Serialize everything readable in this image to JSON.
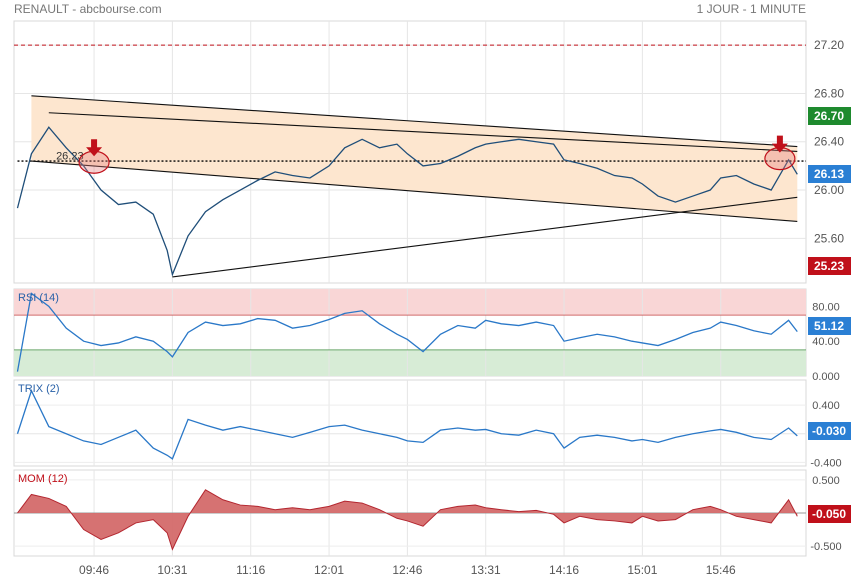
{
  "header": {
    "title": "RENAULT - abcbourse.com",
    "period": "1 JOUR - 1 MINUTE"
  },
  "colors": {
    "price_line": "#1f4e79",
    "channel_fill": "#fde6cf",
    "tag_blue": "#2a7fd4",
    "tag_green": "#1e8a2e",
    "tag_red": "#c0101a",
    "rsi_line": "#2a78c8",
    "rsi_over": "#f9d6d6",
    "rsi_under": "#d7ecd6",
    "mom_fill": "#d46a6a",
    "mom_line": "#b3262f",
    "arrow": "#c0101a"
  },
  "icons": {
    "signal": "down-arrow-icon"
  },
  "chart_data": [
    {
      "panel": "price",
      "type": "line",
      "ylim": [
        25.23,
        27.4
      ],
      "yticks": [
        "27.20",
        "26.80",
        "26.40",
        "26.00",
        "25.60"
      ],
      "value_tags": {
        "high": "26.70",
        "last": "26.13",
        "low": "25.23"
      },
      "ref_line": 27.2,
      "pivot_line": 26.24,
      "annotation": "26.23",
      "x_labels": [
        "09:46",
        "10:31",
        "11:16",
        "12:01",
        "12:46",
        "13:31",
        "14:16",
        "15:01",
        "15:46"
      ],
      "x": [
        "09:02",
        "09:10",
        "09:20",
        "09:30",
        "09:40",
        "09:50",
        "10:00",
        "10:10",
        "10:20",
        "10:28",
        "10:31",
        "10:40",
        "10:50",
        "11:00",
        "11:10",
        "11:20",
        "11:30",
        "11:40",
        "11:50",
        "12:01",
        "12:10",
        "12:20",
        "12:30",
        "12:40",
        "12:46",
        "12:55",
        "13:05",
        "13:15",
        "13:25",
        "13:31",
        "13:40",
        "13:50",
        "14:00",
        "14:10",
        "14:16",
        "14:25",
        "14:35",
        "14:45",
        "14:55",
        "15:01",
        "15:10",
        "15:20",
        "15:30",
        "15:40",
        "15:46",
        "15:55",
        "16:05",
        "16:15",
        "16:25",
        "16:30"
      ],
      "values": [
        25.85,
        26.3,
        26.52,
        26.35,
        26.2,
        26.0,
        25.88,
        25.9,
        25.8,
        25.5,
        25.3,
        25.62,
        25.82,
        25.92,
        26.0,
        26.08,
        26.15,
        26.12,
        26.1,
        26.2,
        26.35,
        26.42,
        26.35,
        26.38,
        26.3,
        26.2,
        26.22,
        26.28,
        26.35,
        26.38,
        26.4,
        26.42,
        26.4,
        26.38,
        26.25,
        26.22,
        26.18,
        26.12,
        26.1,
        26.05,
        25.95,
        25.9,
        25.95,
        26.0,
        26.1,
        26.12,
        26.05,
        26.0,
        26.25,
        26.13
      ],
      "trendlines": [
        {
          "from": [
            "09:10",
            26.78
          ],
          "to": [
            "16:30",
            26.36
          ]
        },
        {
          "from": [
            "09:10",
            26.24
          ],
          "to": [
            "16:30",
            25.74
          ]
        },
        {
          "from": [
            "09:20",
            26.64
          ],
          "to": [
            "16:30",
            26.32
          ]
        },
        {
          "from": [
            "10:31",
            25.28
          ],
          "to": [
            "16:30",
            25.94
          ]
        }
      ],
      "signals": [
        {
          "x": "09:46",
          "y": 26.23
        },
        {
          "x": "16:20",
          "y": 26.26
        }
      ]
    },
    {
      "panel": "rsi",
      "type": "line",
      "title": "RSI (14)",
      "ylim": [
        0,
        100
      ],
      "yticks": [
        "80.00",
        "40.00",
        "0.000"
      ],
      "overbought": 70,
      "oversold": 30,
      "value_tag": "51.12",
      "x": [
        "09:02",
        "09:10",
        "09:20",
        "09:30",
        "09:40",
        "09:50",
        "10:00",
        "10:10",
        "10:20",
        "10:28",
        "10:31",
        "10:40",
        "10:50",
        "11:00",
        "11:10",
        "11:20",
        "11:30",
        "11:40",
        "11:50",
        "12:01",
        "12:10",
        "12:20",
        "12:30",
        "12:40",
        "12:46",
        "12:55",
        "13:05",
        "13:15",
        "13:25",
        "13:31",
        "13:40",
        "13:50",
        "14:00",
        "14:10",
        "14:16",
        "14:25",
        "14:35",
        "14:45",
        "14:55",
        "15:01",
        "15:10",
        "15:20",
        "15:30",
        "15:40",
        "15:46",
        "15:55",
        "16:05",
        "16:15",
        "16:25",
        "16:30"
      ],
      "values": [
        5,
        95,
        80,
        55,
        40,
        35,
        38,
        45,
        40,
        28,
        22,
        50,
        62,
        58,
        60,
        66,
        64,
        55,
        58,
        65,
        72,
        75,
        60,
        48,
        42,
        28,
        48,
        58,
        55,
        64,
        60,
        58,
        62,
        58,
        40,
        44,
        48,
        45,
        40,
        38,
        35,
        42,
        50,
        55,
        62,
        58,
        52,
        48,
        64,
        51
      ]
    },
    {
      "panel": "trix",
      "type": "line",
      "title": "TRIX (2)",
      "ylim": [
        -0.45,
        0.75
      ],
      "yticks": [
        "0.400",
        "-0.400"
      ],
      "value_tag": "-0.030",
      "x": [
        "09:02",
        "09:10",
        "09:20",
        "09:30",
        "09:40",
        "09:50",
        "10:00",
        "10:10",
        "10:20",
        "10:28",
        "10:31",
        "10:40",
        "10:50",
        "11:00",
        "11:10",
        "11:20",
        "11:30",
        "11:40",
        "11:50",
        "12:01",
        "12:10",
        "12:20",
        "12:30",
        "12:40",
        "12:46",
        "12:55",
        "13:05",
        "13:15",
        "13:25",
        "13:31",
        "13:40",
        "13:50",
        "14:00",
        "14:10",
        "14:16",
        "14:25",
        "14:35",
        "14:45",
        "14:55",
        "15:01",
        "15:10",
        "15:20",
        "15:30",
        "15:40",
        "15:46",
        "15:55",
        "16:05",
        "16:15",
        "16:25",
        "16:30"
      ],
      "values": [
        0.0,
        0.6,
        0.1,
        0.0,
        -0.1,
        -0.15,
        -0.05,
        0.05,
        -0.2,
        -0.3,
        -0.35,
        0.2,
        0.12,
        0.05,
        0.1,
        0.05,
        0.0,
        -0.05,
        0.02,
        0.1,
        0.12,
        0.05,
        0.0,
        -0.05,
        -0.1,
        -0.12,
        0.05,
        0.08,
        0.05,
        0.06,
        0.0,
        -0.02,
        0.05,
        0.0,
        -0.2,
        -0.05,
        -0.02,
        -0.05,
        -0.1,
        -0.08,
        -0.12,
        -0.05,
        0.0,
        0.04,
        0.06,
        0.02,
        -0.05,
        -0.08,
        0.08,
        -0.03
      ]
    },
    {
      "panel": "mom",
      "type": "area",
      "title": "MOM (12)",
      "ylim": [
        -0.65,
        0.65
      ],
      "yticks": [
        "0.500",
        "-0.500"
      ],
      "value_tag": "-0.050",
      "x": [
        "09:02",
        "09:10",
        "09:20",
        "09:30",
        "09:40",
        "09:50",
        "10:00",
        "10:10",
        "10:20",
        "10:28",
        "10:31",
        "10:40",
        "10:50",
        "11:00",
        "11:10",
        "11:20",
        "11:30",
        "11:40",
        "11:50",
        "12:01",
        "12:10",
        "12:20",
        "12:30",
        "12:40",
        "12:46",
        "12:55",
        "13:05",
        "13:15",
        "13:25",
        "13:31",
        "13:40",
        "13:50",
        "14:00",
        "14:10",
        "14:16",
        "14:25",
        "14:35",
        "14:45",
        "14:55",
        "15:01",
        "15:10",
        "15:20",
        "15:30",
        "15:40",
        "15:46",
        "15:55",
        "16:05",
        "16:15",
        "16:25",
        "16:30"
      ],
      "values": [
        0.0,
        0.28,
        0.22,
        0.1,
        -0.25,
        -0.4,
        -0.3,
        -0.15,
        -0.1,
        -0.3,
        -0.55,
        -0.05,
        0.35,
        0.2,
        0.12,
        0.1,
        0.05,
        0.08,
        0.05,
        0.1,
        0.18,
        0.15,
        0.05,
        -0.08,
        -0.12,
        -0.2,
        0.05,
        0.1,
        0.12,
        0.08,
        0.05,
        0.02,
        0.04,
        -0.02,
        -0.15,
        -0.05,
        -0.1,
        -0.12,
        -0.15,
        -0.05,
        -0.12,
        -0.1,
        0.05,
        0.1,
        0.05,
        -0.05,
        -0.1,
        -0.15,
        0.2,
        -0.05
      ]
    }
  ]
}
